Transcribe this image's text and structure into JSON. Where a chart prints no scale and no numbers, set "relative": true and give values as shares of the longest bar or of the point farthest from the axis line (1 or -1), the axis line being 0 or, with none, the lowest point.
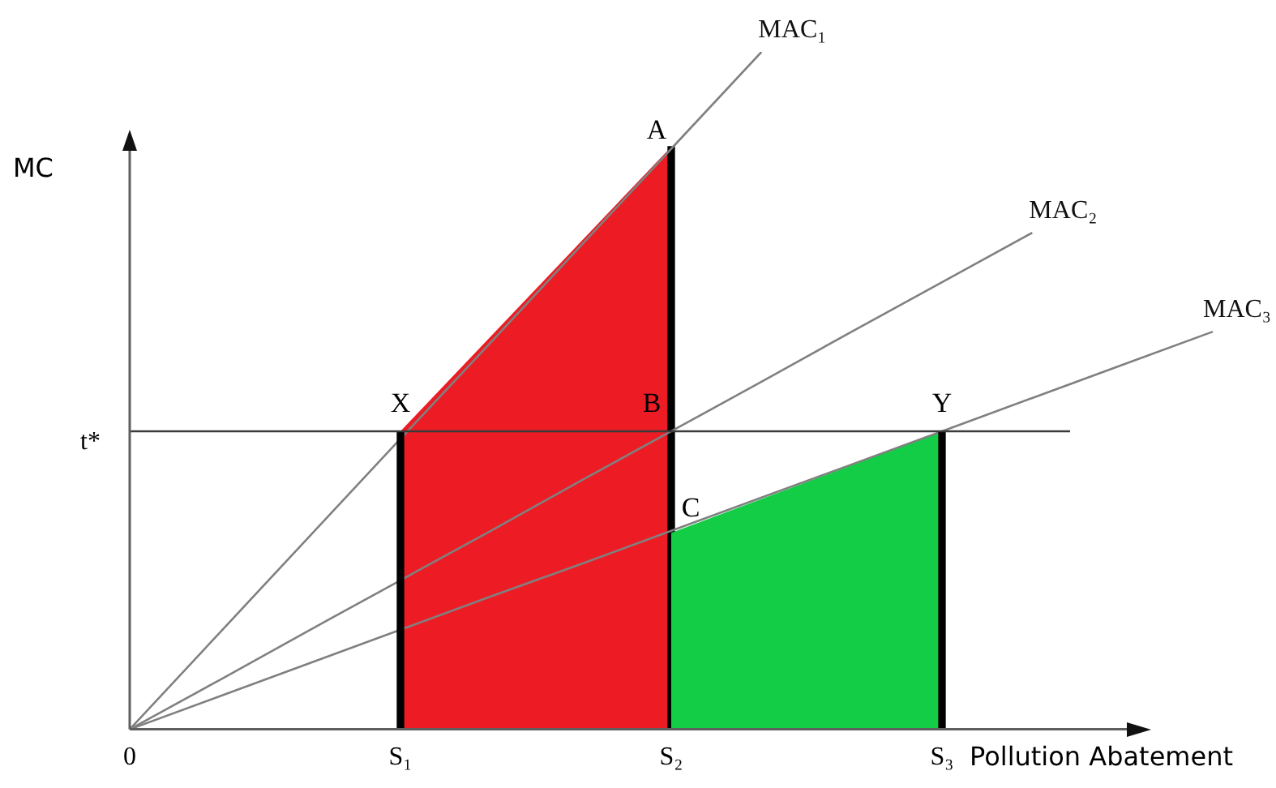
{
  "chart_data": {
    "type": "line",
    "relative": true,
    "xlabel": "Pollution Abatement",
    "ylabel": "MC",
    "categories": [
      "0",
      null,
      null,
      "S₁",
      null,
      null,
      "S₂",
      null,
      null,
      "S₃",
      null,
      null,
      null
    ],
    "series": [
      {
        "type": "area",
        "color": "#ed1c24",
        "values": [
          null,
          null,
          null,
          0.44,
          0.58,
          0.72,
          0.86,
          null,
          null,
          null,
          null,
          null,
          null
        ]
      },
      {
        "type": "bar",
        "color": "#000000",
        "values": [
          null,
          null,
          null,
          null,
          null,
          null,
          0.86,
          null,
          null,
          null,
          null,
          null,
          null
        ]
      },
      {
        "type": "area",
        "color": "#12cd45",
        "values": [
          null,
          null,
          null,
          null,
          null,
          null,
          0.29,
          0.34,
          0.39,
          0.44,
          null,
          null,
          null
        ]
      },
      {
        "name": "MAC₁",
        "color": "#808080",
        "values": [
          0,
          0.143,
          0.286,
          0.429,
          0.571,
          0.714,
          0.857,
          1,
          null,
          null,
          null,
          null,
          null
        ]
      },
      {
        "name": "MAC₂",
        "color": "#808080",
        "values": [
          0,
          0.073,
          0.147,
          0.22,
          0.293,
          0.367,
          0.44,
          0.513,
          0.587,
          0.66,
          0.733,
          null,
          null
        ]
      },
      {
        "name": "MAC₃",
        "color": "#808080",
        "values": [
          0,
          0.049,
          0.098,
          0.147,
          0.196,
          0.244,
          0.293,
          0.342,
          0.391,
          0.44,
          0.489,
          0.538,
          0.587
        ]
      },
      {
        "type": "bar",
        "color": "#000000",
        "values": [
          null,
          null,
          null,
          0.44,
          null,
          null,
          null,
          null,
          null,
          0.44,
          null,
          null,
          null
        ]
      }
    ],
    "ref_lines": [
      {
        "axis": "y",
        "value": 0.44,
        "label": "t*",
        "color": "#3a3a3a"
      }
    ],
    "annotations": [
      {
        "text": "A",
        "x": "S₂",
        "y": 0.86
      },
      {
        "text": "B",
        "x": "S₂",
        "y": 0.44
      },
      {
        "text": "C",
        "x": "S₂",
        "y": 0.29
      },
      {
        "text": "X",
        "x": "S₁",
        "y": 0.44
      },
      {
        "text": "Y",
        "x": "S₃",
        "y": 0.44
      }
    ]
  }
}
